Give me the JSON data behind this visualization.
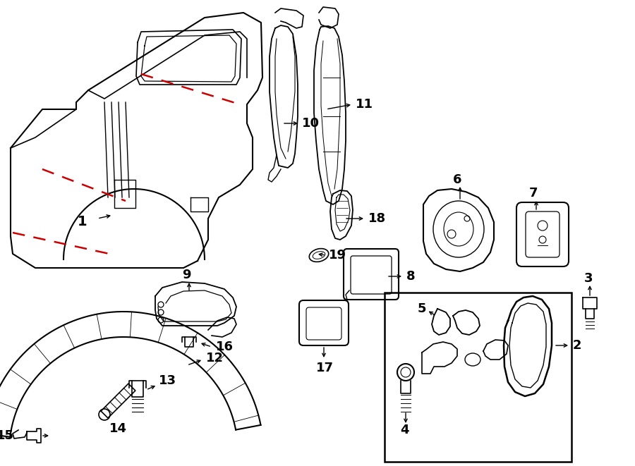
{
  "bg_color": "#ffffff",
  "lc": "#000000",
  "rc": "#cc0000",
  "figsize": [
    9.0,
    6.61
  ],
  "dpi": 100
}
